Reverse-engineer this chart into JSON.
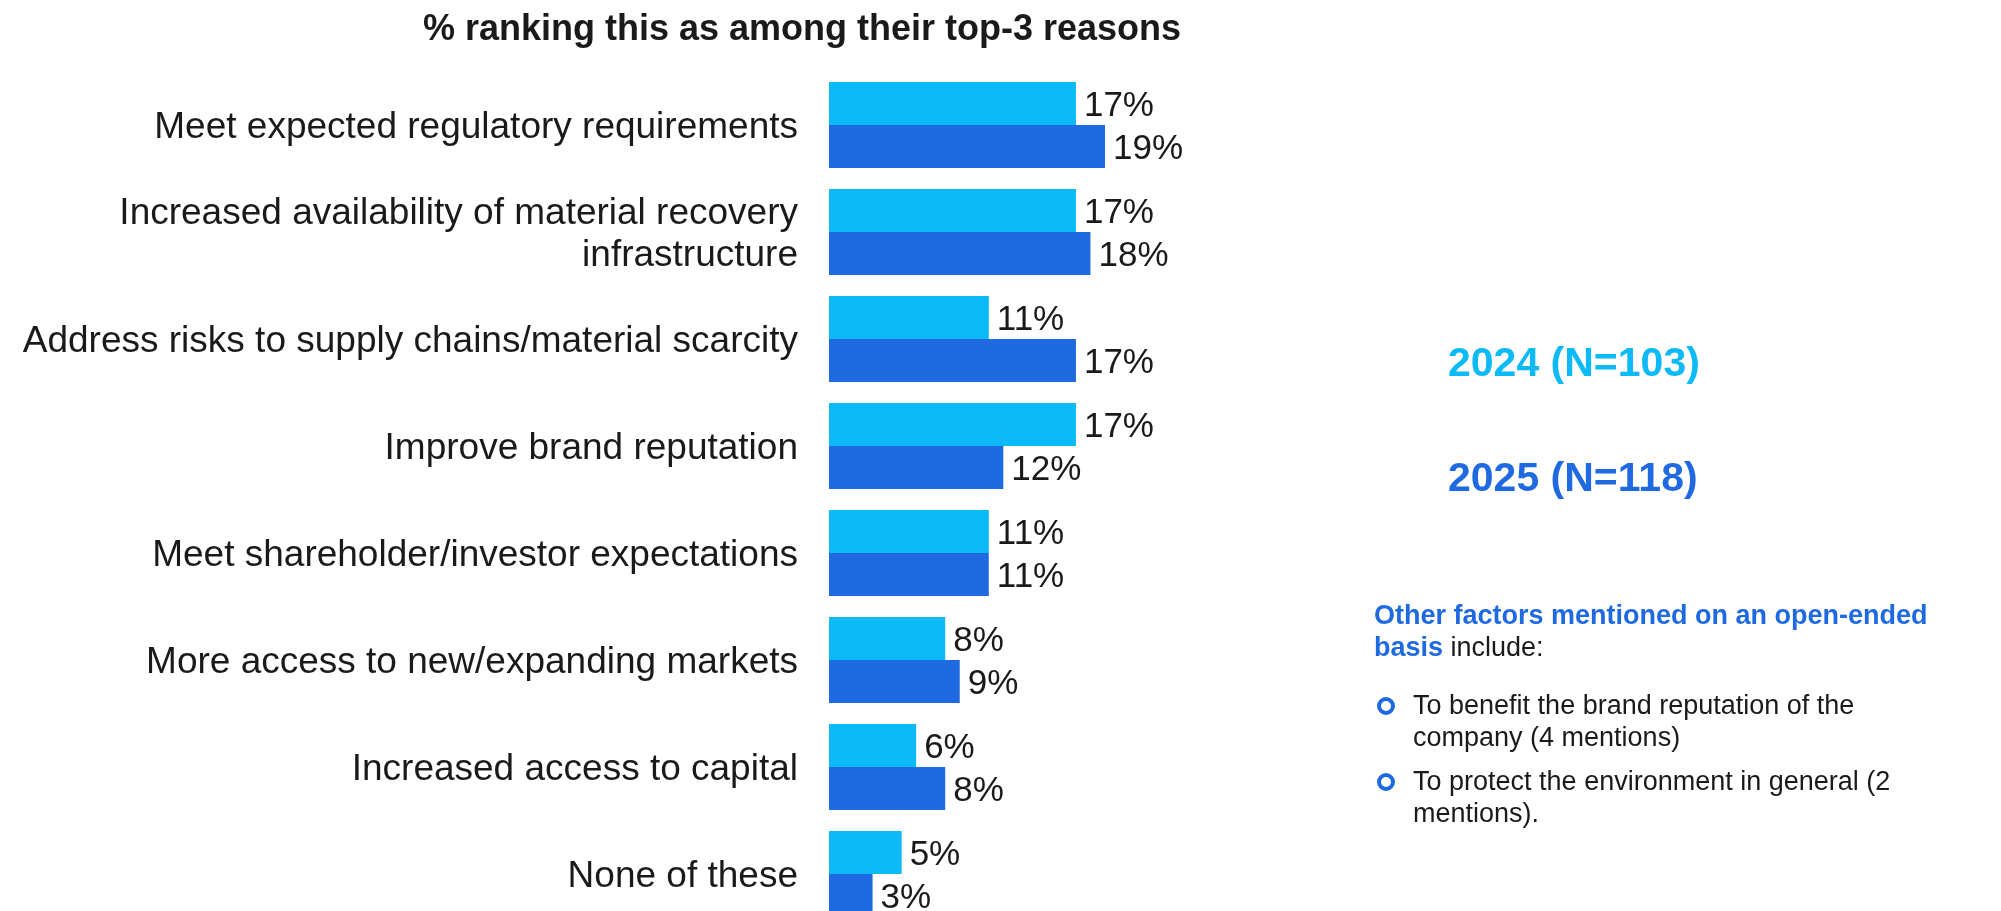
{
  "chart_data": {
    "type": "bar",
    "orientation": "horizontal",
    "title": "% ranking this as among their top-3 reasons",
    "categories": [
      "Meet expected regulatory requirements",
      "Increased availability of material recovery infrastructure",
      "Address risks to supply chains/material scarcity",
      "Improve brand reputation",
      "Meet shareholder/investor expectations",
      "More access to new/expanding markets",
      "Increased access to capital",
      "None of these"
    ],
    "series": [
      {
        "name": "2024 (N=103)",
        "color": "#0bbaf7",
        "values": [
          17,
          17,
          11,
          17,
          11,
          8,
          6,
          5
        ],
        "value_labels": [
          "17%",
          "17%",
          "11%",
          "17%",
          "11%",
          "8%",
          "6%",
          "5%"
        ]
      },
      {
        "name": "2025 (N=118)",
        "color": "#1f6ae0",
        "values": [
          19,
          18,
          17,
          12,
          11,
          9,
          8,
          3
        ],
        "value_labels": [
          "19%",
          "18%",
          "17%",
          "12%",
          "11%",
          "9%",
          "8%",
          "3%"
        ]
      }
    ],
    "legend": "right",
    "annotations": [
      "Other factors mentioned on an open-ended basis include:",
      "To benefit the brand reputation of the company (4 mentions)",
      "To protect the environment in general (2 mentions)."
    ]
  }
}
